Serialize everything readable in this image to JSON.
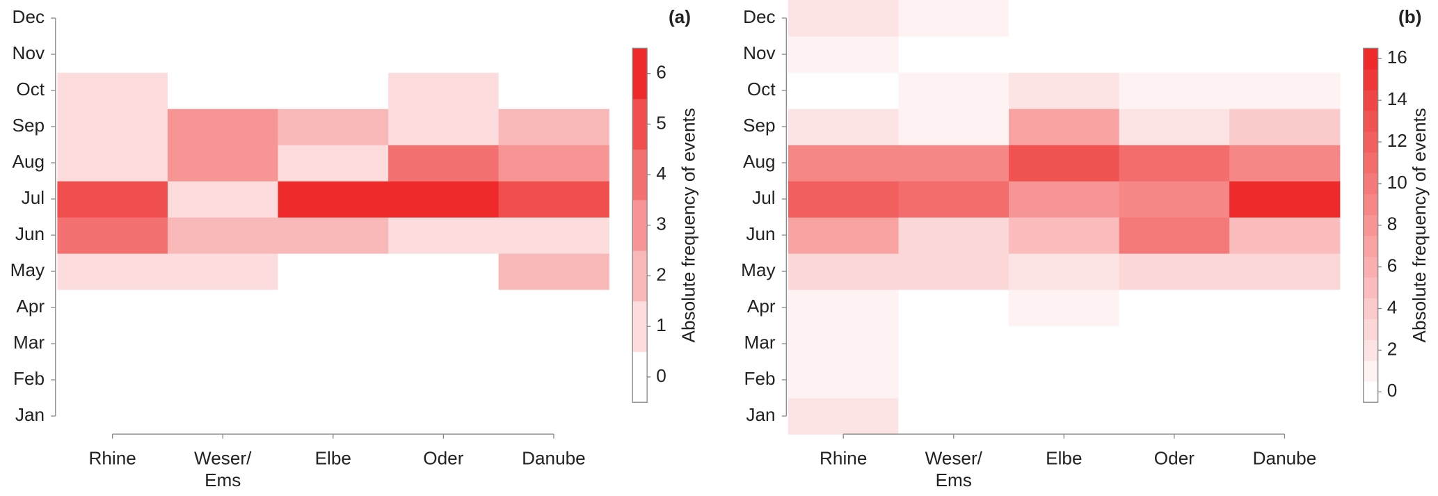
{
  "chart_data": [
    {
      "type": "heatmap",
      "label": "(a)",
      "x_categories": [
        "Rhine",
        "Weser/\nEms",
        "Elbe",
        "Oder",
        "Danube"
      ],
      "y_categories": [
        "Jan",
        "Feb",
        "Mar",
        "Apr",
        "May",
        "Jun",
        "Jul",
        "Aug",
        "Sep",
        "Oct",
        "Nov",
        "Dec"
      ],
      "values": [
        [
          0,
          0,
          0,
          0,
          0
        ],
        [
          0,
          0,
          0,
          0,
          0
        ],
        [
          0,
          0,
          0,
          0,
          0
        ],
        [
          0,
          0,
          0,
          0,
          0
        ],
        [
          1,
          1,
          0,
          0,
          2
        ],
        [
          4,
          2,
          2,
          1,
          1
        ],
        [
          5,
          1,
          6,
          6,
          5
        ],
        [
          1,
          3,
          1,
          4,
          3
        ],
        [
          1,
          3,
          2,
          1,
          2
        ],
        [
          1,
          0,
          0,
          1,
          0
        ],
        [
          0,
          0,
          0,
          0,
          0
        ],
        [
          0,
          0,
          0,
          0,
          0
        ]
      ],
      "colorbar_label": "Absolute frequency of events",
      "clim": [
        -0.5,
        6.5
      ],
      "cticks": [
        0,
        1,
        2,
        3,
        4,
        5,
        6
      ],
      "cmap": [
        "#ffffff",
        "#ee2a2a"
      ]
    },
    {
      "type": "heatmap",
      "label": "(b)",
      "x_categories": [
        "Rhine",
        "Weser/\nEms",
        "Elbe",
        "Oder",
        "Danube"
      ],
      "y_categories": [
        "Jan",
        "Feb",
        "Mar",
        "Apr",
        "May",
        "Jun",
        "Jul",
        "Aug",
        "Sep",
        "Oct",
        "Nov",
        "Dec"
      ],
      "values": [
        [
          2,
          0,
          0,
          0,
          0
        ],
        [
          1,
          0,
          0,
          0,
          0
        ],
        [
          1,
          0,
          0,
          0,
          0
        ],
        [
          1,
          0,
          1,
          0,
          0
        ],
        [
          3,
          3,
          2,
          3,
          3
        ],
        [
          7,
          3,
          5,
          10,
          5
        ],
        [
          12,
          11,
          8,
          9,
          16
        ],
        [
          9,
          9,
          13,
          11,
          9
        ],
        [
          2,
          1,
          7,
          2,
          4
        ],
        [
          0,
          1,
          2,
          1,
          1
        ],
        [
          1,
          0,
          0,
          0,
          0
        ],
        [
          2,
          1,
          0,
          0,
          0
        ]
      ],
      "colorbar_label": "Absolute frequency of events",
      "clim": [
        -0.5,
        16.5
      ],
      "cticks": [
        0,
        2,
        4,
        6,
        8,
        10,
        12,
        14,
        16
      ],
      "cmap": [
        "#ffffff",
        "#ee2a2a"
      ]
    }
  ]
}
